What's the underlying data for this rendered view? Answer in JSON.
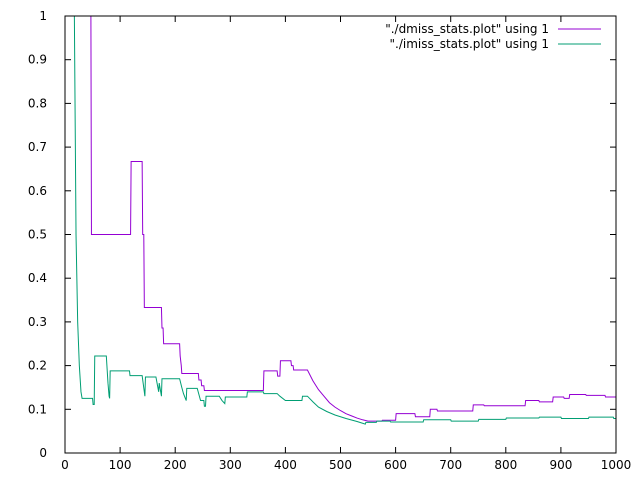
{
  "chart_data": {
    "type": "line",
    "title": "",
    "xlabel": "",
    "ylabel": "",
    "xlim": [
      0,
      1000
    ],
    "ylim": [
      0,
      1
    ],
    "grid": false,
    "legend_position": "top-right",
    "x_ticks": [
      0,
      100,
      200,
      300,
      400,
      500,
      600,
      700,
      800,
      900,
      1000
    ],
    "y_ticks": [
      0,
      0.1,
      0.2,
      0.3,
      0.4,
      0.5,
      0.6,
      0.7,
      0.8,
      0.9,
      1
    ],
    "x_tick_labels": [
      "0",
      "100",
      "200",
      "300",
      "400",
      "500",
      "600",
      "700",
      "800",
      "900",
      "1000"
    ],
    "y_tick_labels": [
      "0",
      "0.1",
      "0.2",
      "0.3",
      "0.4",
      "0.5",
      "0.6",
      "0.7",
      "0.8",
      "0.9",
      "1"
    ],
    "series": [
      {
        "name": "\"./dmiss_stats.plot\" using 1",
        "color": "#9400d3",
        "points": [
          [
            47,
            1.0
          ],
          [
            48,
            0.5
          ],
          [
            119,
            0.5
          ],
          [
            120,
            0.667
          ],
          [
            140,
            0.667
          ],
          [
            141,
            0.5
          ],
          [
            143,
            0.5
          ],
          [
            144,
            0.333
          ],
          [
            175,
            0.333
          ],
          [
            176,
            0.286
          ],
          [
            178,
            0.286
          ],
          [
            179,
            0.25
          ],
          [
            208,
            0.25
          ],
          [
            209,
            0.222
          ],
          [
            211,
            0.2
          ],
          [
            212,
            0.182
          ],
          [
            242,
            0.182
          ],
          [
            243,
            0.167
          ],
          [
            247,
            0.167
          ],
          [
            248,
            0.154
          ],
          [
            252,
            0.154
          ],
          [
            253,
            0.143
          ],
          [
            360,
            0.143
          ],
          [
            361,
            0.188
          ],
          [
            385,
            0.188
          ],
          [
            386,
            0.176
          ],
          [
            390,
            0.176
          ],
          [
            391,
            0.211
          ],
          [
            410,
            0.211
          ],
          [
            411,
            0.2
          ],
          [
            414,
            0.2
          ],
          [
            415,
            0.19
          ],
          [
            440,
            0.19
          ],
          [
            450,
            0.165
          ],
          [
            460,
            0.145
          ],
          [
            470,
            0.13
          ],
          [
            480,
            0.115
          ],
          [
            490,
            0.105
          ],
          [
            500,
            0.097
          ],
          [
            510,
            0.09
          ],
          [
            520,
            0.085
          ],
          [
            530,
            0.08
          ],
          [
            540,
            0.076
          ],
          [
            550,
            0.073
          ],
          [
            575,
            0.073
          ],
          [
            576,
            0.075
          ],
          [
            600,
            0.075
          ],
          [
            601,
            0.09
          ],
          [
            635,
            0.09
          ],
          [
            636,
            0.083
          ],
          [
            662,
            0.083
          ],
          [
            663,
            0.1
          ],
          [
            675,
            0.1
          ],
          [
            676,
            0.096
          ],
          [
            740,
            0.096
          ],
          [
            741,
            0.11
          ],
          [
            760,
            0.11
          ],
          [
            761,
            0.108
          ],
          [
            835,
            0.108
          ],
          [
            836,
            0.12
          ],
          [
            860,
            0.12
          ],
          [
            861,
            0.117
          ],
          [
            885,
            0.117
          ],
          [
            886,
            0.128
          ],
          [
            905,
            0.128
          ],
          [
            906,
            0.125
          ],
          [
            915,
            0.125
          ],
          [
            916,
            0.134
          ],
          [
            945,
            0.134
          ],
          [
            946,
            0.132
          ],
          [
            980,
            0.132
          ],
          [
            981,
            0.128
          ],
          [
            1000,
            0.128
          ]
        ]
      },
      {
        "name": "\"./imiss_stats.plot\" using 1",
        "color": "#009e73",
        "points": [
          [
            17,
            1.0
          ],
          [
            20,
            0.5
          ],
          [
            23,
            0.3
          ],
          [
            26,
            0.2
          ],
          [
            29,
            0.14
          ],
          [
            31,
            0.125
          ],
          [
            50,
            0.125
          ],
          [
            51,
            0.111
          ],
          [
            53,
            0.111
          ],
          [
            54,
            0.222
          ],
          [
            75,
            0.222
          ],
          [
            78,
            0.16
          ],
          [
            80,
            0.13
          ],
          [
            81,
            0.125
          ],
          [
            82,
            0.188
          ],
          [
            117,
            0.188
          ],
          [
            118,
            0.177
          ],
          [
            140,
            0.177
          ],
          [
            145,
            0.13
          ],
          [
            146,
            0.174
          ],
          [
            165,
            0.174
          ],
          [
            170,
            0.14
          ],
          [
            171,
            0.16
          ],
          [
            175,
            0.13
          ],
          [
            176,
            0.17
          ],
          [
            208,
            0.17
          ],
          [
            212,
            0.15
          ],
          [
            215,
            0.136
          ],
          [
            220,
            0.12
          ],
          [
            221,
            0.148
          ],
          [
            240,
            0.148
          ],
          [
            246,
            0.12
          ],
          [
            252,
            0.12
          ],
          [
            253,
            0.107
          ],
          [
            255,
            0.107
          ],
          [
            256,
            0.13
          ],
          [
            280,
            0.13
          ],
          [
            285,
            0.12
          ],
          [
            290,
            0.113
          ],
          [
            291,
            0.128
          ],
          [
            320,
            0.128
          ],
          [
            330,
            0.128
          ],
          [
            331,
            0.14
          ],
          [
            340,
            0.14
          ],
          [
            360,
            0.14
          ],
          [
            361,
            0.136
          ],
          [
            385,
            0.136
          ],
          [
            390,
            0.13
          ],
          [
            400,
            0.12
          ],
          [
            430,
            0.12
          ],
          [
            431,
            0.13
          ],
          [
            440,
            0.13
          ],
          [
            450,
            0.117
          ],
          [
            460,
            0.105
          ],
          [
            475,
            0.095
          ],
          [
            490,
            0.087
          ],
          [
            510,
            0.079
          ],
          [
            530,
            0.072
          ],
          [
            545,
            0.066
          ],
          [
            546,
            0.07
          ],
          [
            565,
            0.07
          ],
          [
            566,
            0.073
          ],
          [
            590,
            0.073
          ],
          [
            591,
            0.071
          ],
          [
            650,
            0.071
          ],
          [
            651,
            0.076
          ],
          [
            700,
            0.076
          ],
          [
            701,
            0.073
          ],
          [
            750,
            0.073
          ],
          [
            751,
            0.077
          ],
          [
            800,
            0.077
          ],
          [
            801,
            0.08
          ],
          [
            860,
            0.08
          ],
          [
            861,
            0.082
          ],
          [
            900,
            0.082
          ],
          [
            901,
            0.079
          ],
          [
            950,
            0.079
          ],
          [
            951,
            0.082
          ],
          [
            995,
            0.082
          ],
          [
            996,
            0.079
          ],
          [
            1000,
            0.079
          ]
        ]
      }
    ]
  }
}
